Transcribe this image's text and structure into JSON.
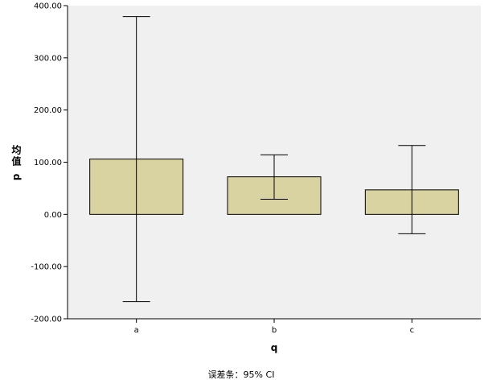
{
  "chart_data": {
    "type": "bar",
    "categories": [
      "a",
      "b",
      "c"
    ],
    "values": [
      106,
      72,
      47
    ],
    "error_bars": [
      {
        "low": -167,
        "high": 379
      },
      {
        "low": 29,
        "high": 114
      },
      {
        "low": -37,
        "high": 132
      }
    ],
    "xlabel": "q",
    "ylabel_main": "均值",
    "ylabel_var": "p",
    "ylim": [
      -200,
      400
    ],
    "yticks": [
      "-200.00",
      "-100.00",
      "0.00",
      "100.00",
      "200.00",
      "300.00",
      "400.00"
    ],
    "footnote": "误差条：95% CI",
    "grid": false,
    "colors": {
      "plot_background": "#f0f0f0",
      "bar_fill": "#d8d3a0",
      "bar_stroke": "#000000"
    }
  }
}
